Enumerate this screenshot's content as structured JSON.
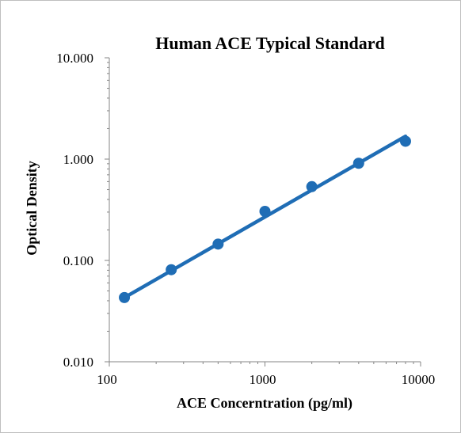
{
  "chart_data": {
    "type": "scatter",
    "title": "Human ACE Typical Standard",
    "xlabel": "ACE Concerntration (pg/ml)",
    "ylabel": "Optical Density",
    "x_scale": "log",
    "y_scale": "log",
    "xlim": [
      100,
      10000
    ],
    "ylim": [
      0.01,
      10
    ],
    "x_ticks": [
      100,
      1000,
      10000
    ],
    "x_tick_labels": [
      "100",
      "1000",
      "10000"
    ],
    "y_ticks": [
      0.01,
      0.1,
      1,
      10
    ],
    "y_tick_labels": [
      "0.010",
      "0.100",
      "1.000",
      "10.000"
    ],
    "grid": false,
    "legend": "none",
    "series": [
      {
        "points": [
          {
            "x": 125,
            "y": 0.043
          },
          {
            "x": 250,
            "y": 0.081
          },
          {
            "x": 500,
            "y": 0.145
          },
          {
            "x": 1000,
            "y": 0.305
          },
          {
            "x": 2000,
            "y": 0.535
          },
          {
            "x": 4000,
            "y": 0.91
          },
          {
            "x": 8000,
            "y": 1.5
          }
        ],
        "trendline": {
          "type": "power",
          "x_range": [
            125,
            8000
          ],
          "y_range": [
            0.043,
            1.68
          ]
        }
      }
    ],
    "colors": {
      "series": "#1f6db5",
      "axis": "#868686"
    }
  }
}
